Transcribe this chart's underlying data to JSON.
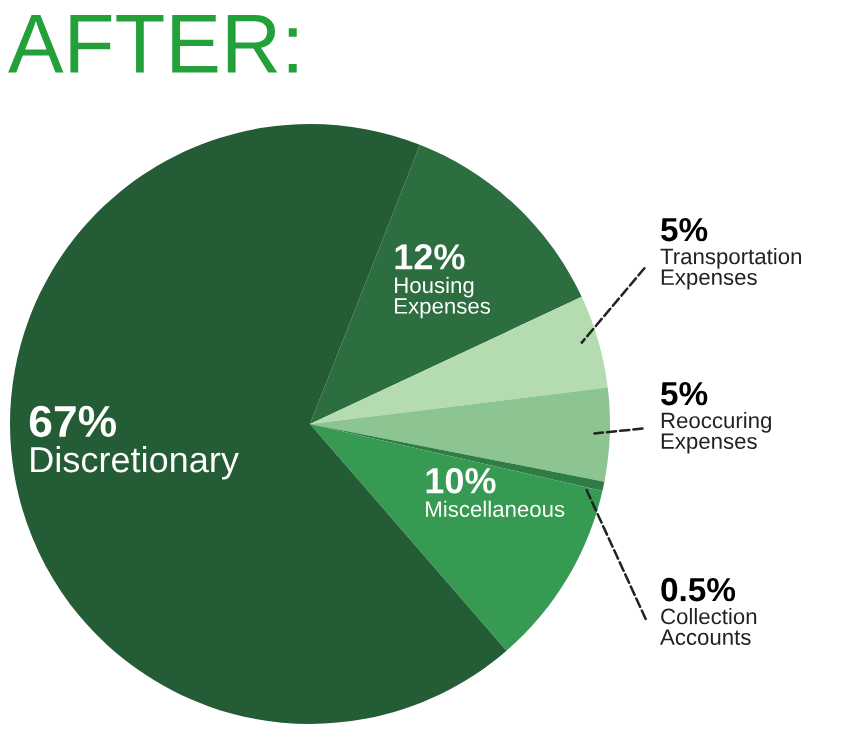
{
  "chart_data": {
    "type": "pie",
    "title": "AFTER:",
    "value_labels": [
      "12%",
      "5%",
      "5%",
      "0.5%",
      "10%",
      "67%"
    ],
    "categories": [
      "Housing Expenses",
      "Transportation Expenses",
      "Reoccuring Expenses",
      "Collection Accounts",
      "Miscellaneous",
      "Discretionary"
    ],
    "values": [
      12,
      5,
      5,
      0.5,
      10,
      67
    ],
    "colors": [
      "#2d6e40",
      "#b4dcb0",
      "#8cc592",
      "#2f7d45",
      "#379a52",
      "#245c35"
    ]
  }
}
